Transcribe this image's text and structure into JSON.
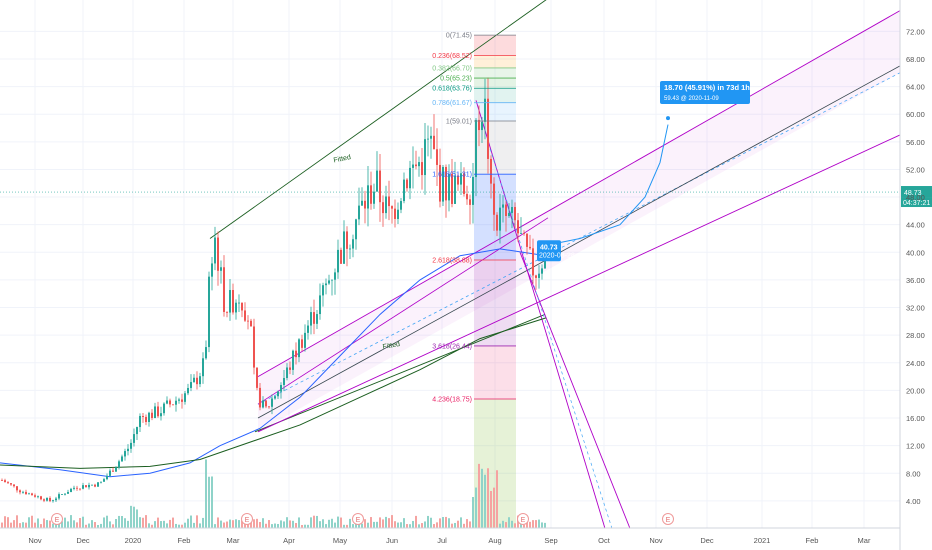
{
  "chart_data": {
    "type": "candlestick",
    "y_axis": {
      "labels": [
        "4.00",
        "8.00",
        "12.00",
        "16.00",
        "20.00",
        "24.00",
        "28.00",
        "32.00",
        "36.00",
        "40.00",
        "44.00",
        "48.00",
        "52.00",
        "56.00",
        "60.00",
        "64.00",
        "68.00",
        "72.00"
      ],
      "values": [
        4,
        8,
        12,
        16,
        20,
        24,
        28,
        32,
        36,
        40,
        44,
        48,
        52,
        56,
        60,
        64,
        68,
        72
      ],
      "range": [
        0,
        74
      ]
    },
    "x_axis": {
      "labels": [
        "Nov",
        "Dec",
        "2020",
        "Feb",
        "Mar",
        "Apr",
        "May",
        "Jun",
        "Jul",
        "Aug",
        "Sep",
        "Oct",
        "Nov",
        "Dec",
        "2021",
        "Feb",
        "Mar"
      ]
    },
    "price_tag": {
      "price": "48.73",
      "countdown": "04:37:21",
      "value": 48.73
    },
    "fib_levels": [
      {
        "label": "0(71.45)",
        "value": 71.45,
        "color": "#787b86"
      },
      {
        "label": "0.236(68.52)",
        "value": 68.52,
        "color": "#f23645"
      },
      {
        "label": "0.382(66.70)",
        "value": 66.7,
        "color": "#81c784"
      },
      {
        "label": "0.5(65.23)",
        "value": 65.23,
        "color": "#4caf50"
      },
      {
        "label": "0.618(63.76)",
        "value": 63.76,
        "color": "#089981"
      },
      {
        "label": "0.786(61.67)",
        "value": 61.67,
        "color": "#64b5f6"
      },
      {
        "label": "1(59.01)",
        "value": 59.01,
        "color": "#787b86"
      },
      {
        "label": "1.618(51.31)",
        "value": 51.31,
        "color": "#2962ff"
      },
      {
        "label": "2.618(38.88)",
        "value": 38.88,
        "color": "#f23645"
      },
      {
        "label": "3.618(26.44)",
        "value": 26.44,
        "color": "#9c27b0"
      },
      {
        "label": "4.236(18.75)",
        "value": 18.75,
        "color": "#e91e63"
      }
    ],
    "projection": {
      "line1": "18.70 (45.91%) in 73d 1h",
      "line2": "59.43 @ 2020-11-09"
    },
    "last_tag": {
      "price": "40.73",
      "date": "2020-08-28"
    },
    "channel_label_upper": "Fitted",
    "channel_label_lower": "Fitted",
    "earnings_marker": "E",
    "colors": {
      "up": "#26a69a",
      "down": "#ef5350",
      "volume_up": "#8fd3c9",
      "volume_down": "#f5a3a1",
      "ma_blue": "#2962ff",
      "ma_green": "#1b5e20",
      "channel_purple": "#b000c8",
      "callout_blue": "#2196f3"
    }
  }
}
